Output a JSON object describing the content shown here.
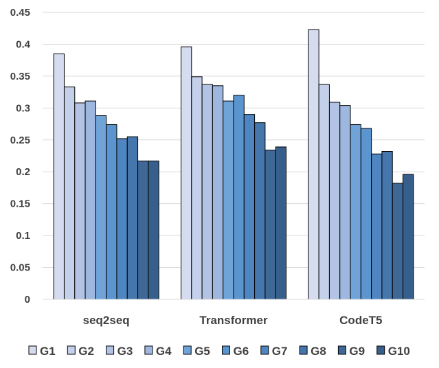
{
  "chart_data": {
    "type": "bar",
    "categories": [
      "seq2seq",
      "Transformer",
      "CodeT5"
    ],
    "series": [
      {
        "name": "G1",
        "values": [
          0.385,
          0.396,
          0.423
        ],
        "color": "#d6dcef"
      },
      {
        "name": "G2",
        "values": [
          0.333,
          0.349,
          0.337
        ],
        "color": "#c4d0ea"
      },
      {
        "name": "G3",
        "values": [
          0.308,
          0.337,
          0.309
        ],
        "color": "#b2c3e4"
      },
      {
        "name": "G4",
        "values": [
          0.311,
          0.335,
          0.304
        ],
        "color": "#9db7df"
      },
      {
        "name": "G5",
        "values": [
          0.288,
          0.311,
          0.274
        ],
        "color": "#70a4d9"
      },
      {
        "name": "G6",
        "values": [
          0.274,
          0.32,
          0.268
        ],
        "color": "#5b95cf"
      },
      {
        "name": "G7",
        "values": [
          0.252,
          0.29,
          0.228
        ],
        "color": "#4f86c1"
      },
      {
        "name": "G8",
        "values": [
          0.255,
          0.277,
          0.232
        ],
        "color": "#4677ac"
      },
      {
        "name": "G9",
        "values": [
          0.217,
          0.234,
          0.182
        ],
        "color": "#3f6896"
      },
      {
        "name": "G10",
        "values": [
          0.217,
          0.239,
          0.196
        ],
        "color": "#375f8b"
      }
    ],
    "ylim": [
      0,
      0.45
    ],
    "yticks": [
      "0",
      "0.05",
      "0.1",
      "0.15",
      "0.2",
      "0.25",
      "0.3",
      "0.35",
      "0.4",
      "0.45"
    ],
    "grid": true,
    "legend_position": "bottom",
    "title": "",
    "xlabel": "",
    "ylabel": ""
  }
}
